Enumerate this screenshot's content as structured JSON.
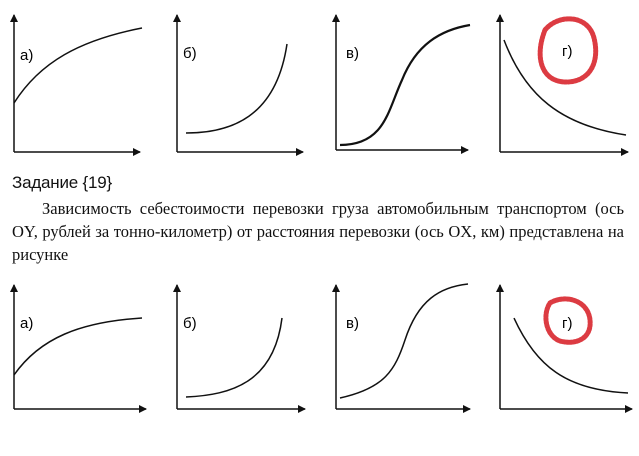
{
  "task": {
    "title": "Задание {19}",
    "text": "Зависимость себестоимости перевозки груза автомобильным транспортом (ось OY, рублей за тонно-километр) от расстояния перевозки (ось OX, км) представлена на рисунке"
  },
  "graph_labels": [
    "а)",
    "б)",
    "в)",
    "г)"
  ],
  "highlight_color": "#d8262e",
  "rows": [
    {
      "name": "top-row",
      "selected_answer": "г)"
    },
    {
      "name": "bottom-row",
      "selected_answer": "г)"
    }
  ]
}
